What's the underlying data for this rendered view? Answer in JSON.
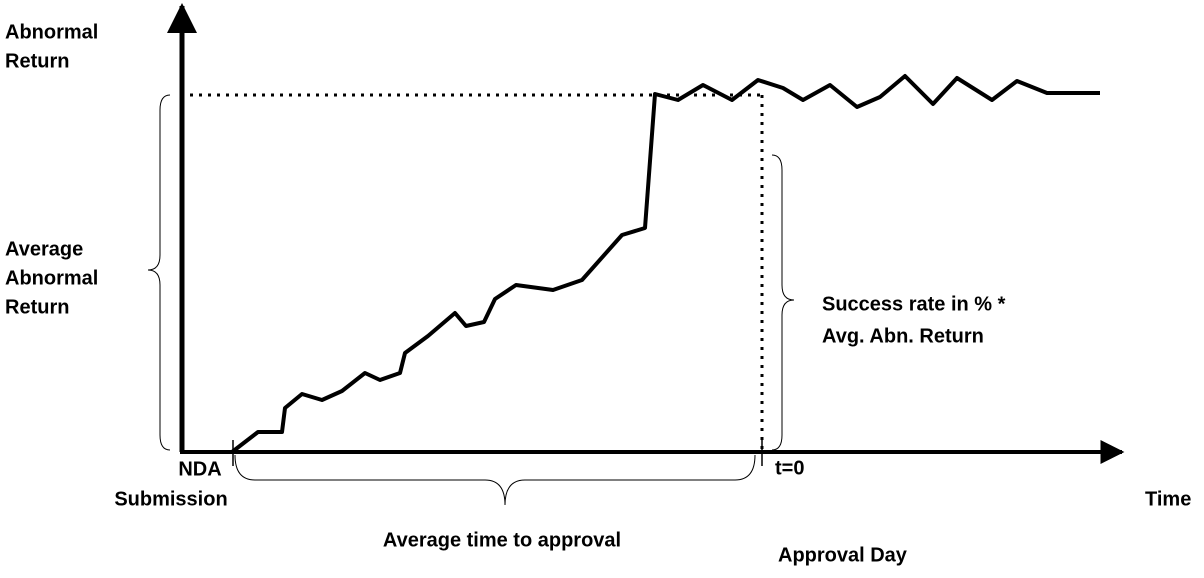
{
  "y_axis_label": [
    "Abnormal",
    "Return"
  ],
  "left_brace_label": [
    "Average",
    "Abnormal",
    "Return"
  ],
  "right_brace_label": [
    "Success rate in % *",
    "Avg. Abn. Return"
  ],
  "start_label": [
    "NDA",
    "Submission"
  ],
  "bottom_brace_label": "Average time to approval",
  "event_label": "t=0",
  "event_name": "Approval Day",
  "x_axis_label": "Time"
}
